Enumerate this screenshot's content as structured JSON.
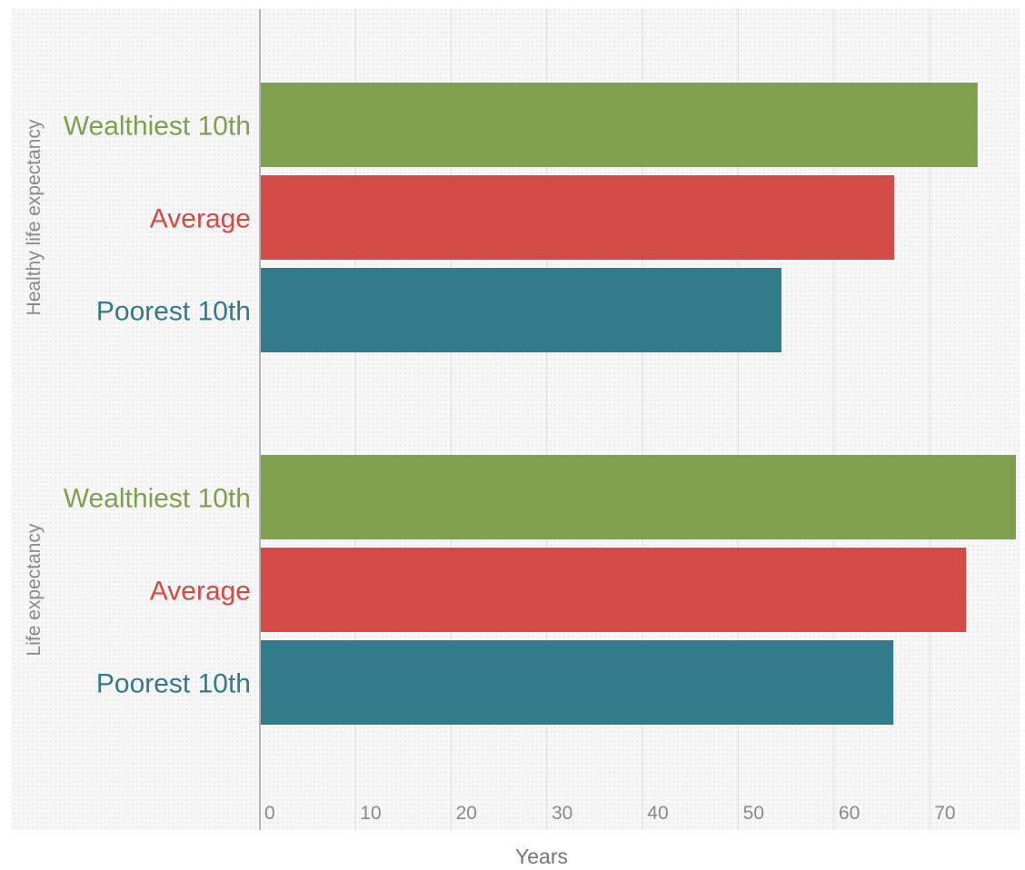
{
  "chart_data": {
    "type": "bar",
    "orientation": "horizontal",
    "xlabel": "Years",
    "xlim": [
      0,
      79
    ],
    "xticks": [
      "0",
      "10",
      "20",
      "30",
      "40",
      "50",
      "60",
      "70"
    ],
    "grid": true,
    "groups": [
      {
        "label": "Healthy life expectancy",
        "bars": [
          {
            "category": "Wealthiest 10th",
            "value": 75,
            "color": "#80a04e"
          },
          {
            "category": "Average",
            "value": 66.3,
            "color": "#d44a44"
          },
          {
            "category": "Poorest 10th",
            "value": 54.5,
            "color": "#317b8a"
          }
        ]
      },
      {
        "label": "Life expectancy",
        "bars": [
          {
            "category": "Wealthiest 10th",
            "value": 79,
            "color": "#80a04e"
          },
          {
            "category": "Average",
            "value": 73.8,
            "color": "#d44a44"
          },
          {
            "category": "Poorest 10th",
            "value": 66.2,
            "color": "#317b8a"
          }
        ]
      }
    ]
  }
}
